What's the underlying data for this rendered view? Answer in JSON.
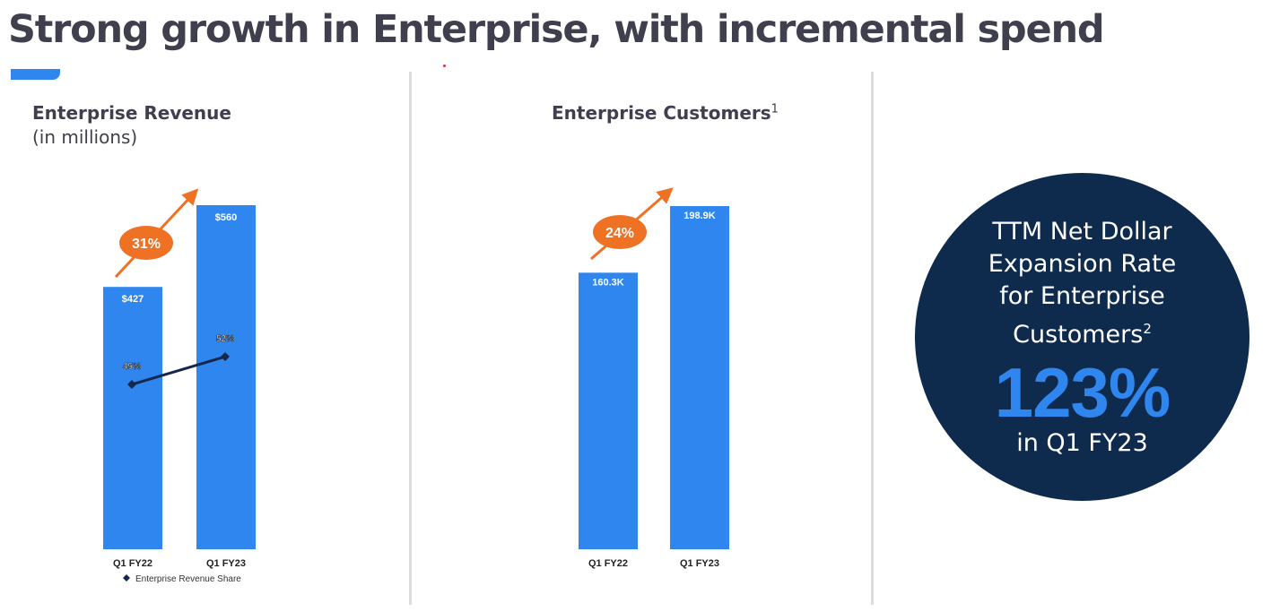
{
  "page": {
    "title": "Strong growth in Enterprise, with incremental spend"
  },
  "revenue_panel": {
    "title": "Enterprise Revenue",
    "subtitle": "(in millions)",
    "growth_badge": "31%"
  },
  "customers_panel": {
    "title": "Enterprise Customers",
    "title_footnote": "1",
    "growth_badge": "24%"
  },
  "ndr_panel": {
    "lines": [
      "TTM Net Dollar",
      "Expansion Rate",
      "for Enterprise",
      "Customers"
    ],
    "footnote": "2",
    "value": "123%",
    "period": "in Q1 FY23"
  },
  "colors": {
    "bar": "#2f86ef",
    "line": "#14284b",
    "badge": "#ef7124",
    "circle": "#0e2a4d",
    "title": "#3f3f4e"
  },
  "chart_data": [
    {
      "type": "bar",
      "title": "Enterprise Revenue",
      "subtitle": "(in millions)",
      "categories": [
        "Q1 FY22",
        "Q1 FY23"
      ],
      "series": [
        {
          "values": [
            427,
            560
          ],
          "labels": [
            "$427",
            "$560"
          ]
        },
        {
          "name": "Enterprise Revenue Share",
          "type": "line",
          "values": [
            45,
            52
          ],
          "labels": [
            "45%",
            "52%"
          ],
          "unit": "%"
        }
      ],
      "annotations": [
        "31%"
      ],
      "legend": "bottom-center",
      "grid": false
    },
    {
      "type": "bar",
      "title": "Enterprise Customers",
      "categories": [
        "Q1 FY22",
        "Q1 FY23"
      ],
      "series": [
        {
          "values": [
            160.3,
            198.9
          ],
          "labels": [
            "160.3K",
            "198.9K"
          ],
          "unit": "K"
        }
      ],
      "annotations": [
        "24%"
      ],
      "legend": "none",
      "grid": false
    }
  ]
}
